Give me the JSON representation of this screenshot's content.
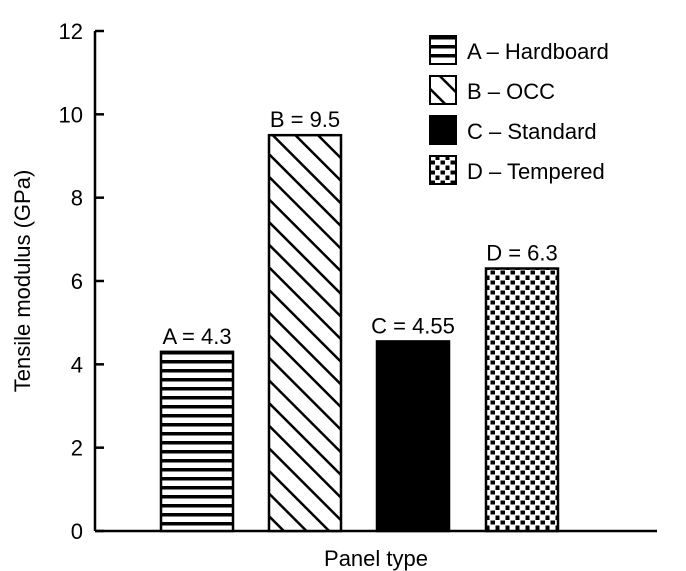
{
  "chart_data": {
    "type": "bar",
    "title": "",
    "xlabel": "Panel type",
    "ylabel": "Tensile modulus (GPa)",
    "ylim": [
      0,
      12
    ],
    "yticks": [
      0,
      2,
      4,
      6,
      8,
      10,
      12
    ],
    "grid": false,
    "legend_position": "top-right",
    "categories": [
      "A",
      "B",
      "C",
      "D"
    ],
    "values": [
      4.3,
      9.5,
      4.55,
      6.3
    ],
    "bar_labels": [
      "A = 4.3",
      "B = 9.5",
      "C = 4.55",
      "D = 6.3"
    ],
    "patterns": [
      "horizontal-lines",
      "diagonal-hatch",
      "solid-black",
      "dotted"
    ],
    "legend": [
      {
        "label": "A – Hardboard",
        "pattern": "horizontal-lines"
      },
      {
        "label": "B – OCC",
        "pattern": "diagonal-hatch"
      },
      {
        "label": "C – Standard",
        "pattern": "solid-black"
      },
      {
        "label": "D – Tempered",
        "pattern": "dotted"
      }
    ],
    "colors": {
      "ink": "#000000",
      "background": "#ffffff"
    }
  }
}
